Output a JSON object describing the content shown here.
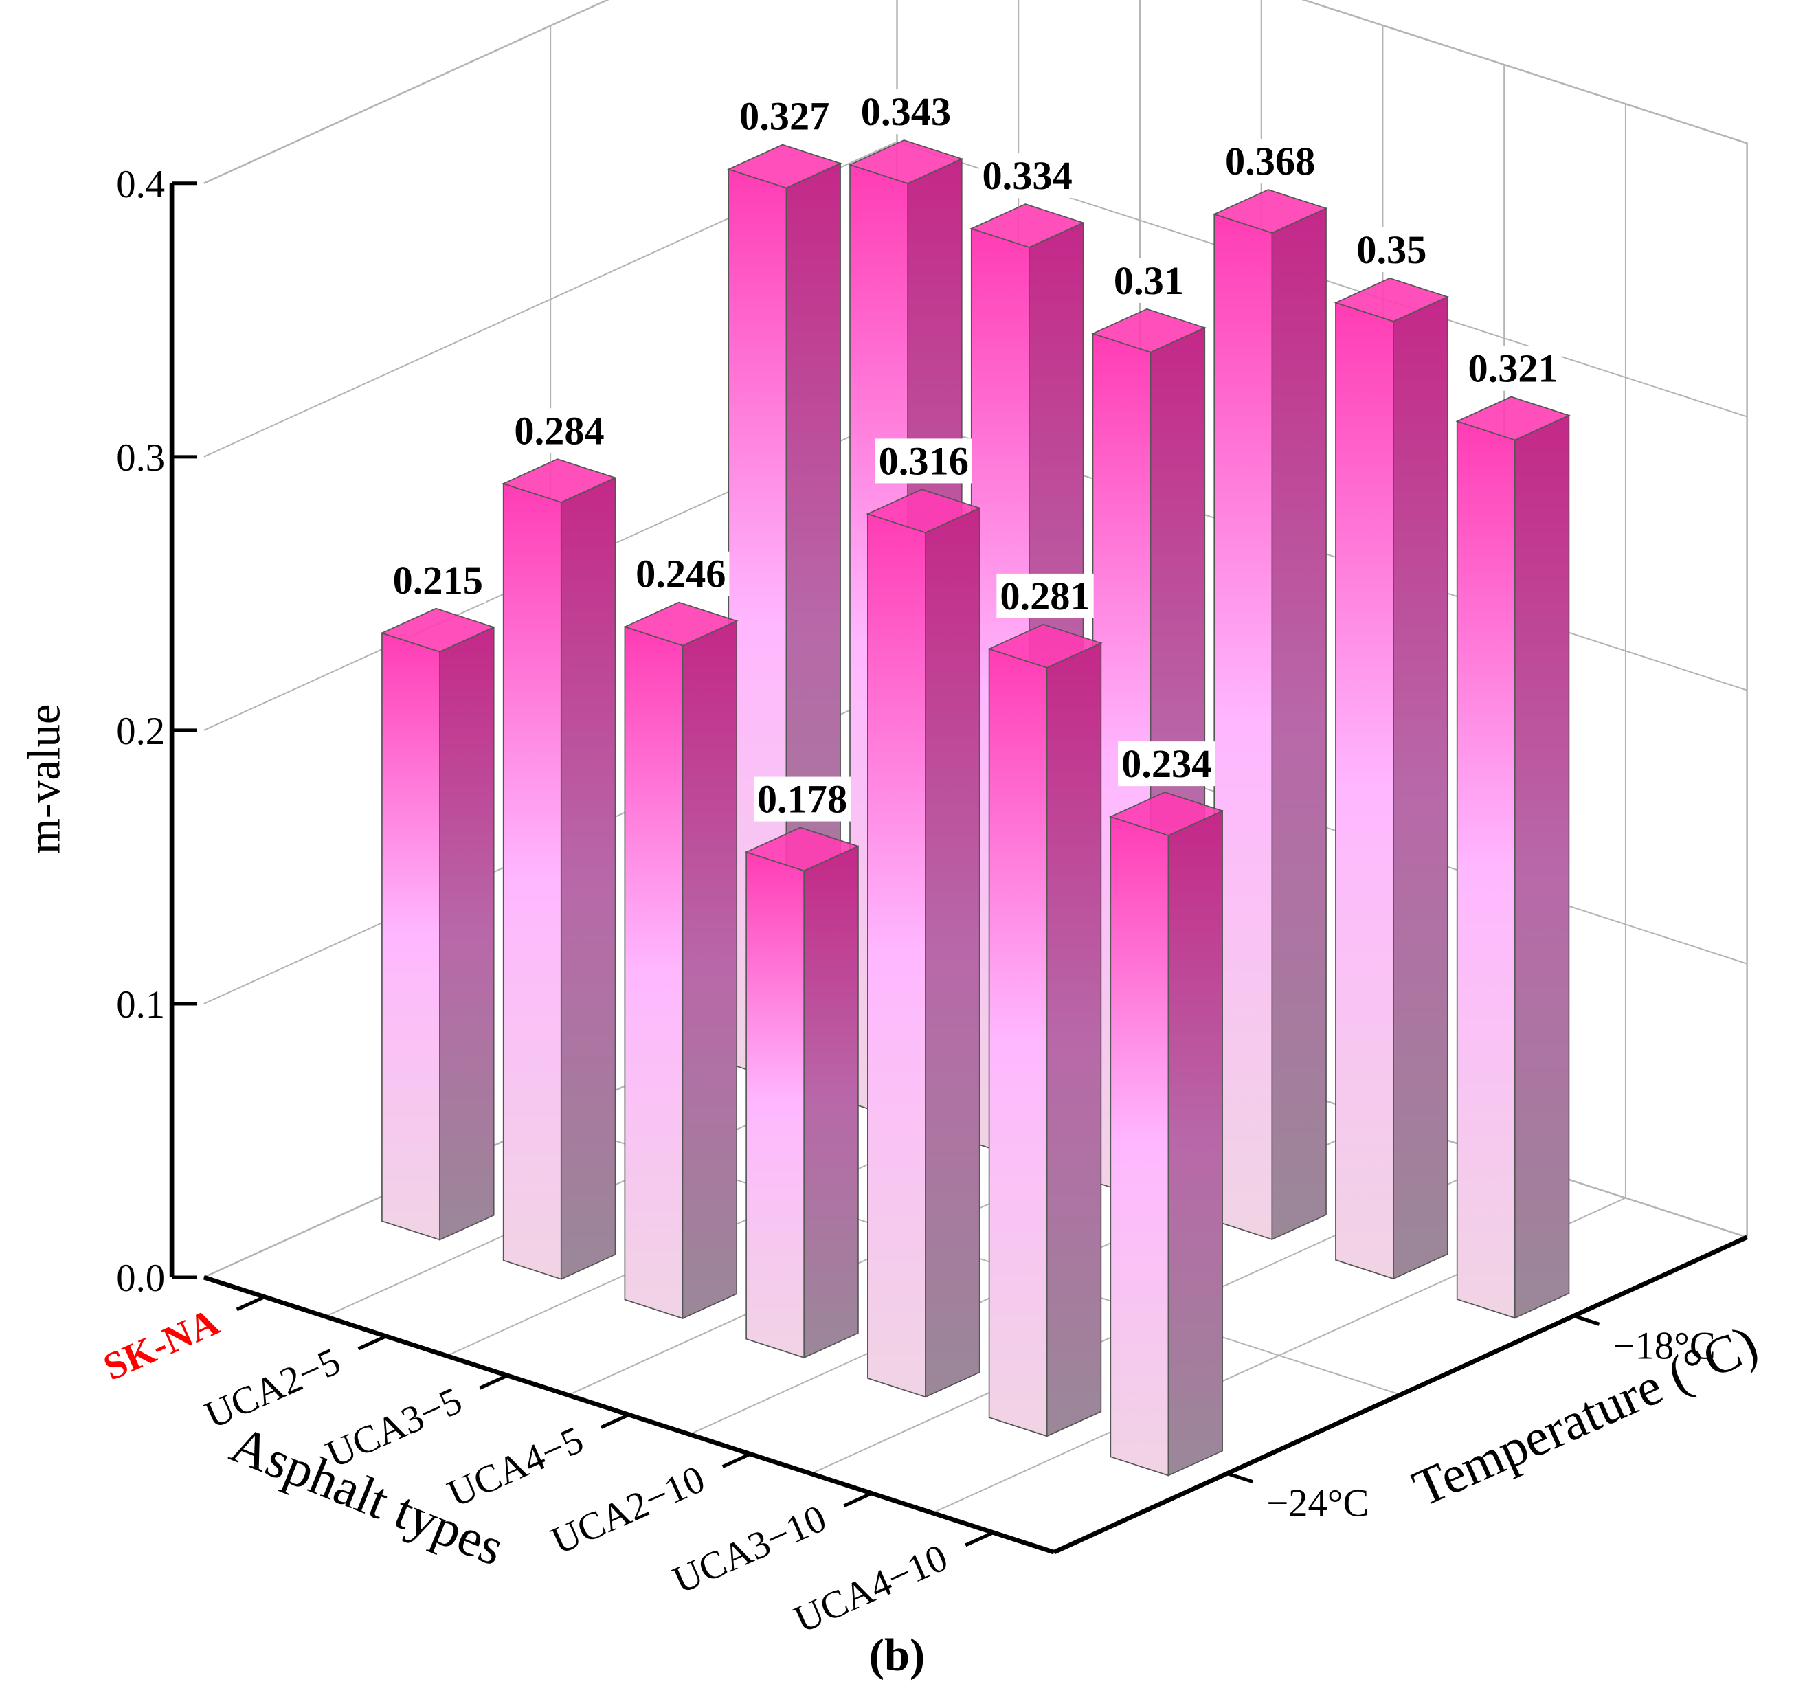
{
  "chart_data": {
    "type": "bar3d",
    "title": "(b)",
    "xlabel": "Asphalt types",
    "ylabel": "Temperature (°C)",
    "zlabel": "m-value",
    "categories": [
      "SK-NA",
      "UCA2−5",
      "UCA3−5",
      "UCA4−5",
      "UCA2−10",
      "UCA3−10",
      "UCA4−10"
    ],
    "highlight_index": 0,
    "highlight_color": "#ff0000",
    "series": [
      {
        "name": "−24°C",
        "color": "#ff3cb4",
        "values": [
          0.215,
          0.284,
          0.246,
          0.178,
          0.316,
          0.281,
          0.234
        ]
      },
      {
        "name": "−18°C",
        "color": "#ff3cb4",
        "values": [
          0.327,
          0.343,
          0.334,
          0.31,
          0.368,
          0.35,
          0.321
        ]
      }
    ],
    "zlim": [
      0,
      0.4
    ],
    "zticks": [
      {
        "value": 0,
        "label": "0.0"
      },
      0.1,
      0.2,
      0.3,
      0.4
    ],
    "grid": true
  }
}
